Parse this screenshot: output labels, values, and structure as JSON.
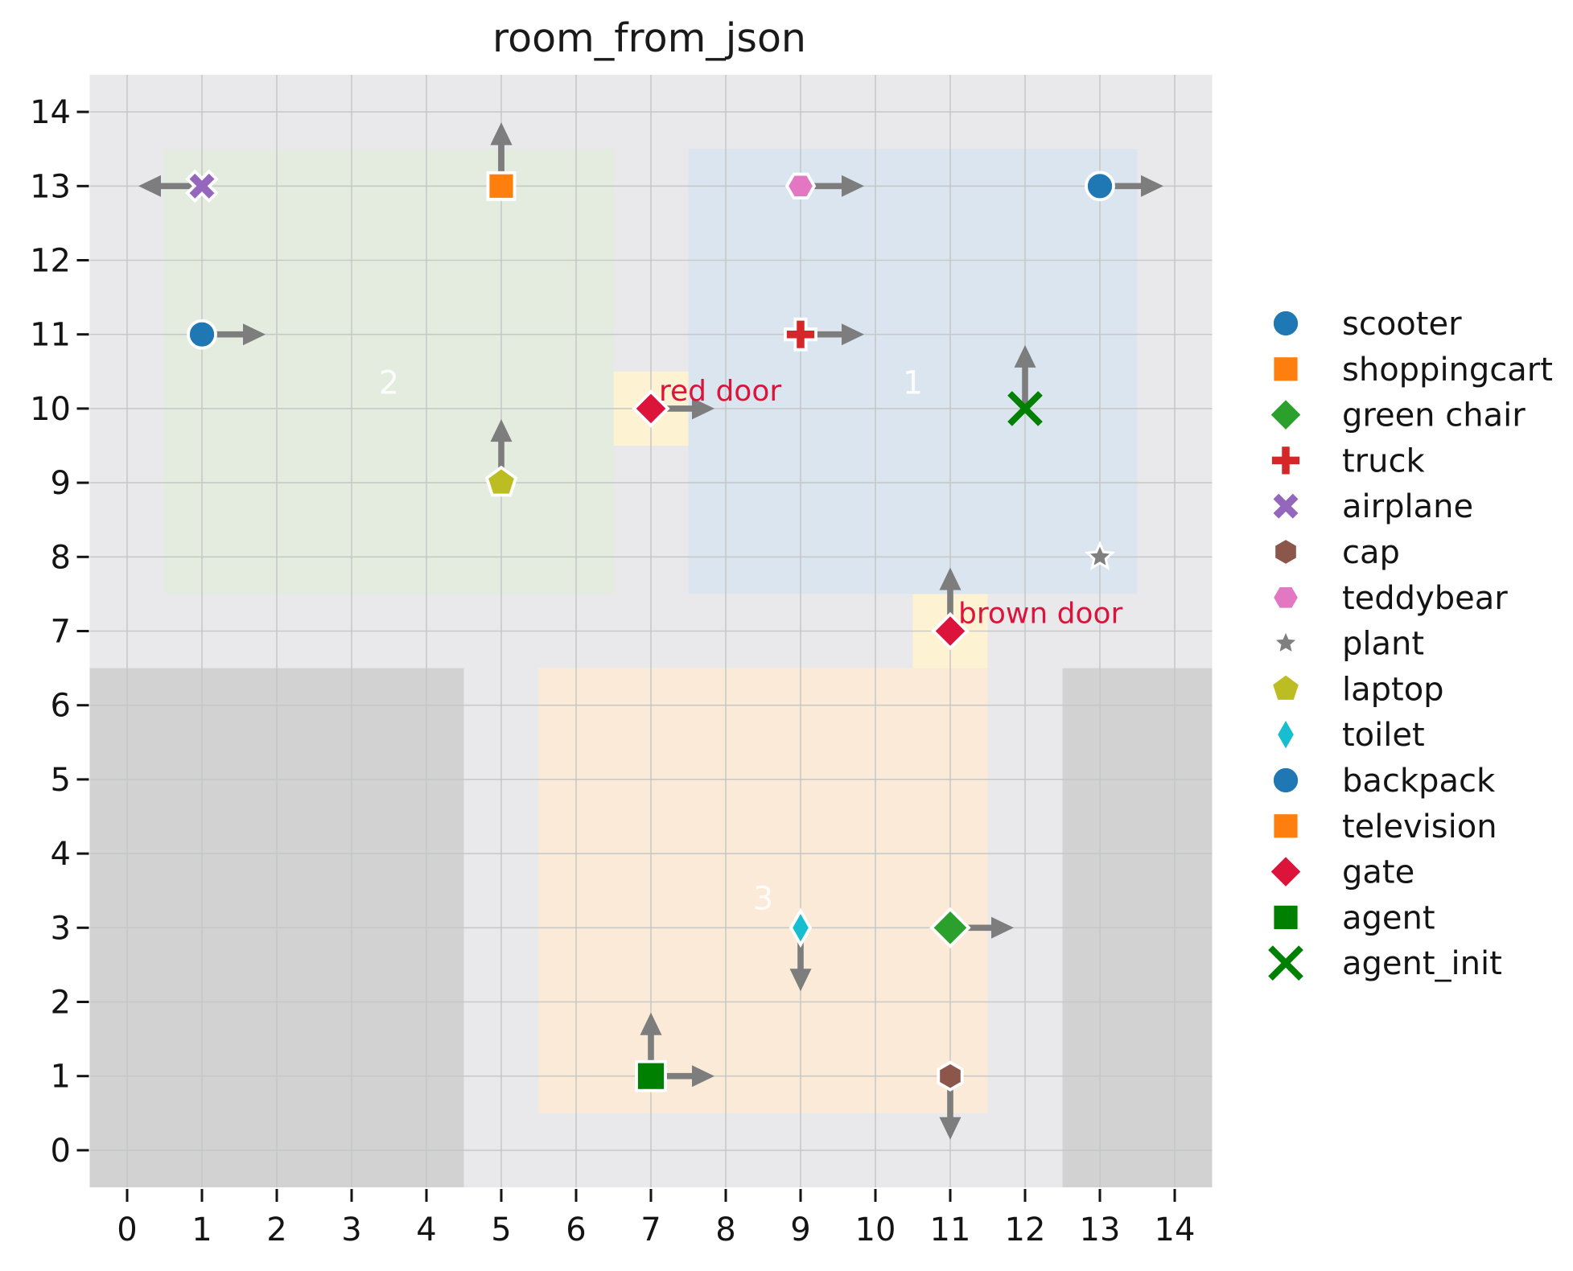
{
  "chart_data": {
    "type": "scatter",
    "title": "room_from_json",
    "xlim": [
      -0.5,
      14.5
    ],
    "ylim": [
      -0.5,
      14.5
    ],
    "x_ticks": [
      0,
      1,
      2,
      3,
      4,
      5,
      6,
      7,
      8,
      9,
      10,
      11,
      12,
      13,
      14
    ],
    "y_ticks": [
      0,
      1,
      2,
      3,
      4,
      5,
      6,
      7,
      8,
      9,
      10,
      11,
      12,
      13,
      14
    ],
    "grid": true,
    "legend_position": "center right",
    "style": {
      "figure_background": "#ffffff",
      "plot_background": "#e9e9eb",
      "grid_color": "#c5c6c5",
      "tick_color": "#141414",
      "wall_color": "#d2d2d3",
      "door_patch_color": "#fdf3d3",
      "door_label_color": "#dc143c",
      "arrow_color": "#7d7d7d",
      "room_label_color": "#ffffff"
    },
    "walls": [
      {
        "name": "wall-bottom-left",
        "x": -0.5,
        "y": -0.5,
        "w": 5,
        "h": 7
      },
      {
        "name": "wall-bottom-right",
        "x": 12.5,
        "y": -0.5,
        "w": 2,
        "h": 7
      }
    ],
    "rooms": [
      {
        "label": "1",
        "x": 7.5,
        "y": 7.5,
        "w": 6,
        "h": 6,
        "color": "#dbe5ef",
        "label_x": 10.5,
        "label_y": 10.35
      },
      {
        "label": "2",
        "x": 0.5,
        "y": 7.5,
        "w": 6,
        "h": 6,
        "color": "#e3ecdf",
        "label_x": 3.5,
        "label_y": 10.35
      },
      {
        "label": "3",
        "x": 5.5,
        "y": 0.5,
        "w": 6,
        "h": 6,
        "color": "#fbead7",
        "label_x": 8.5,
        "label_y": 3.4
      }
    ],
    "doors": [
      {
        "label": "red door",
        "x": 7,
        "y": 10
      },
      {
        "label": "brown door",
        "x": 11,
        "y": 7
      }
    ],
    "points": [
      {
        "label": "scooter",
        "marker": "circle",
        "color": "#1f77b4",
        "x": 1,
        "y": 11,
        "arrows": [
          "right"
        ]
      },
      {
        "label": "shoppingcart",
        "marker": "square",
        "color": "#ff7f0e",
        "x": 5,
        "y": 13,
        "arrows": [
          "up"
        ]
      },
      {
        "label": "green chair",
        "marker": "diamond",
        "color": "#2ca02c",
        "x": 11,
        "y": 3,
        "arrows": [
          "right"
        ],
        "size": 23
      },
      {
        "label": "truck",
        "marker": "plus",
        "color": "#d62728",
        "x": 9,
        "y": 11,
        "arrows": [
          "right"
        ]
      },
      {
        "label": "airplane",
        "marker": "x-filled",
        "color": "#9467bd",
        "x": 1,
        "y": 13,
        "arrows": [
          "left"
        ]
      },
      {
        "label": "cap",
        "marker": "hexagon-pointy",
        "color": "#8c564b",
        "x": 11,
        "y": 1,
        "arrows": [
          "down"
        ]
      },
      {
        "label": "teddybear",
        "marker": "hexagon-flat",
        "color": "#e377c2",
        "x": 9,
        "y": 13,
        "arrows": [
          "right"
        ]
      },
      {
        "label": "plant",
        "marker": "star",
        "color": "#7f7f7f",
        "x": 13,
        "y": 8,
        "arrows": []
      },
      {
        "label": "laptop",
        "marker": "pentagon",
        "color": "#bcbd22",
        "x": 5,
        "y": 9,
        "arrows": [
          "up"
        ]
      },
      {
        "label": "toilet",
        "marker": "thin-diamond",
        "color": "#17becf",
        "x": 9,
        "y": 3,
        "arrows": [
          "down"
        ]
      },
      {
        "label": "backpack",
        "marker": "circle",
        "color": "#1f77b4",
        "x": 13,
        "y": 13,
        "arrows": [
          "right"
        ]
      },
      {
        "label": "television",
        "marker": "square",
        "color": "#ff7f0e",
        "x": 5,
        "y": 13,
        "arrows": [
          "up"
        ]
      },
      {
        "label": "gate",
        "marker": "diamond",
        "color": "#dc143c",
        "x": 7,
        "y": 10,
        "arrows": [
          "right"
        ]
      },
      {
        "label": "gate",
        "marker": "diamond",
        "color": "#dc143c",
        "x": 11,
        "y": 7,
        "arrows": [
          "up"
        ]
      },
      {
        "label": "agent",
        "marker": "square",
        "color": "#008000",
        "x": 7,
        "y": 1,
        "arrows": [
          "up",
          "right"
        ],
        "size": 18
      },
      {
        "label": "agent_init",
        "marker": "x-stroke",
        "color": "#008000",
        "x": 12,
        "y": 10,
        "arrows": [
          "up"
        ]
      }
    ],
    "legend": [
      {
        "label": "scooter",
        "marker": "circle",
        "color": "#1f77b4"
      },
      {
        "label": "shoppingcart",
        "marker": "square",
        "color": "#ff7f0e"
      },
      {
        "label": "green chair",
        "marker": "diamond",
        "color": "#2ca02c"
      },
      {
        "label": "truck",
        "marker": "plus",
        "color": "#d62728"
      },
      {
        "label": "airplane",
        "marker": "x-filled",
        "color": "#9467bd"
      },
      {
        "label": "cap",
        "marker": "hexagon-pointy",
        "color": "#8c564b"
      },
      {
        "label": "teddybear",
        "marker": "hexagon-flat",
        "color": "#e377c2"
      },
      {
        "label": "plant",
        "marker": "star",
        "color": "#7f7f7f"
      },
      {
        "label": "laptop",
        "marker": "pentagon",
        "color": "#bcbd22"
      },
      {
        "label": "toilet",
        "marker": "thin-diamond",
        "color": "#17becf"
      },
      {
        "label": "backpack",
        "marker": "circle",
        "color": "#1f77b4"
      },
      {
        "label": "television",
        "marker": "square",
        "color": "#ff7f0e"
      },
      {
        "label": "gate",
        "marker": "diamond",
        "color": "#dc143c"
      },
      {
        "label": "agent",
        "marker": "square",
        "color": "#008000"
      },
      {
        "label": "agent_init",
        "marker": "x-stroke",
        "color": "#008000"
      }
    ]
  }
}
